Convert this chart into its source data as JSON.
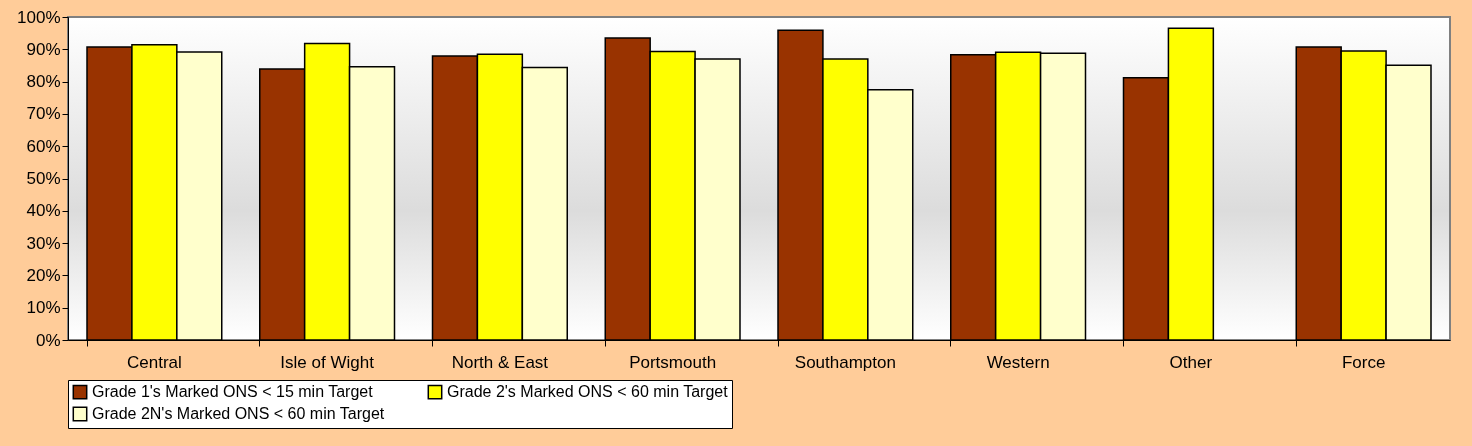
{
  "chart_data": {
    "type": "bar",
    "categories": [
      "Central",
      "Isle of Wight",
      "North & East",
      "Portsmouth",
      "Southampton",
      "Western",
      "Other",
      "Force"
    ],
    "series": [
      {
        "name": "Grade 1's Marked ONS < 15 min Target",
        "color": "#993300",
        "values": [
          90.7,
          83.9,
          87.9,
          93.5,
          95.9,
          88.3,
          81.2,
          90.7
        ]
      },
      {
        "name": "Grade 2's Marked ONS < 60 min Target",
        "color": "#ffff00",
        "values": [
          91.4,
          91.8,
          88.5,
          89.3,
          87.0,
          89.1,
          96.5,
          89.5
        ]
      },
      {
        "name": "Grade 2N's Marked ONS < 60 min Target",
        "color": "#ffffcc",
        "values": [
          89.2,
          84.6,
          84.4,
          87.0,
          77.5,
          88.8,
          null,
          85.1
        ]
      }
    ],
    "ylim": [
      0,
      100
    ],
    "yticks": [
      {
        "value": 0,
        "label": "0%"
      },
      {
        "value": 10,
        "label": "10%"
      },
      {
        "value": 20,
        "label": "20%"
      },
      {
        "value": 30,
        "label": "30%"
      },
      {
        "value": 40,
        "label": "40%"
      },
      {
        "value": 50,
        "label": "50%"
      },
      {
        "value": 60,
        "label": "60%"
      },
      {
        "value": 70,
        "label": "70%"
      },
      {
        "value": 80,
        "label": "80%"
      },
      {
        "value": 90,
        "label": "90%"
      },
      {
        "value": 100,
        "label": "100%"
      }
    ],
    "legend": "bottom"
  }
}
